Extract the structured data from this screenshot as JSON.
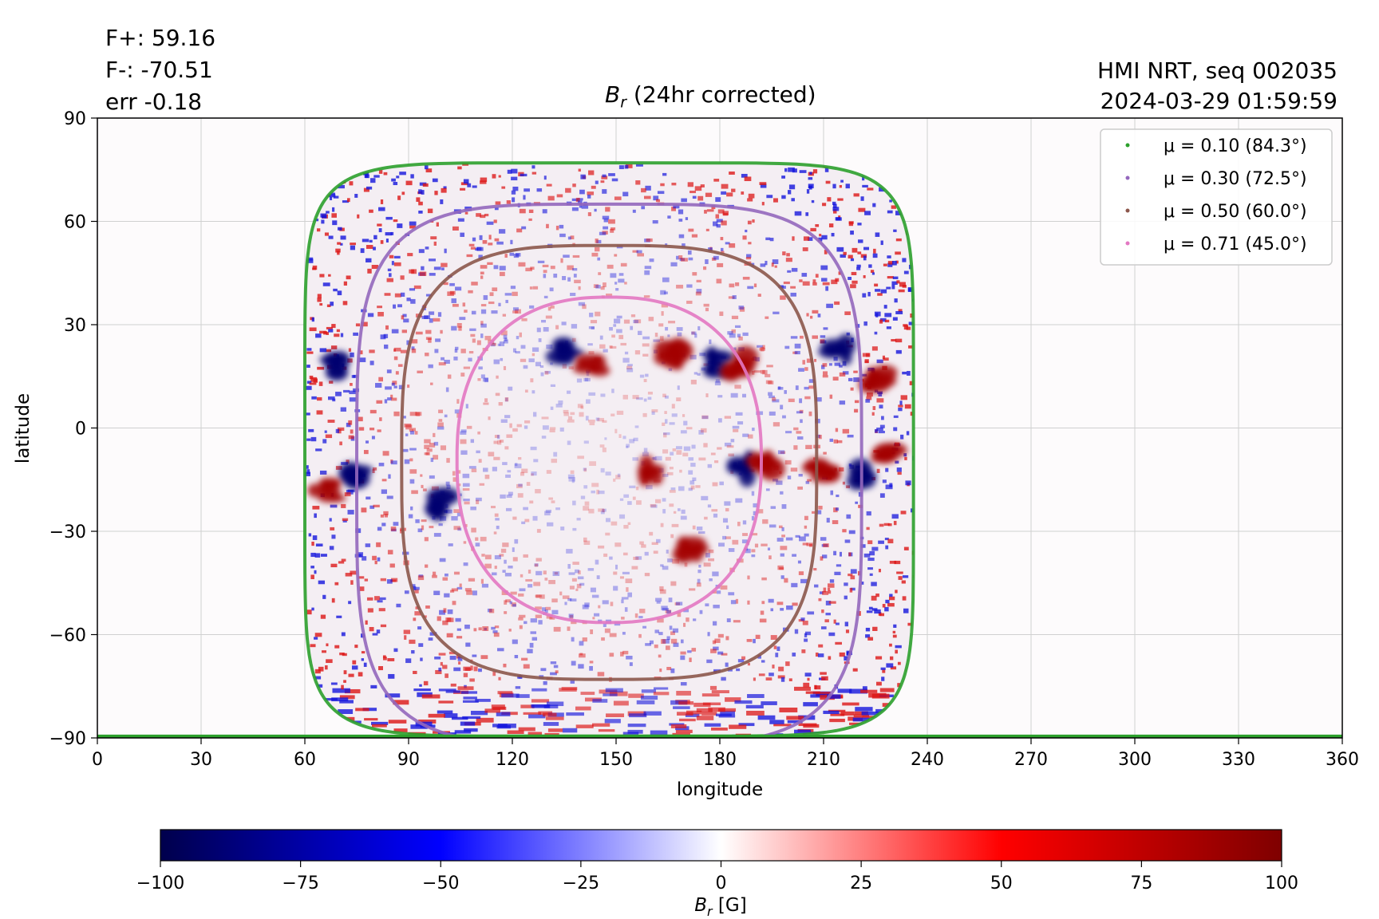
{
  "header": {
    "flux_plus": "F+: 59.16",
    "flux_minus": "F-: -70.51",
    "error": "err -0.18",
    "source": "HMI NRT, seq 002035",
    "timestamp": "2024-03-29 01:59:59"
  },
  "chart_data": {
    "type": "heatmap",
    "title": "B_r (24hr corrected)",
    "title_main": "B",
    "title_sub": "r",
    "title_rest": " (24hr corrected)",
    "xlabel": "longitude",
    "ylabel": "latitude",
    "xlim": [
      0,
      360
    ],
    "ylim": [
      -90,
      90
    ],
    "x_ticks": [
      0,
      30,
      60,
      90,
      120,
      150,
      180,
      210,
      240,
      270,
      300,
      330,
      360
    ],
    "y_ticks": [
      90,
      60,
      30,
      0,
      -30,
      -60,
      -90
    ],
    "x_tick_labels": [
      "0",
      "30",
      "60",
      "90",
      "120",
      "150",
      "180",
      "210",
      "240",
      "270",
      "300",
      "330",
      "360"
    ],
    "y_tick_labels": [
      "90",
      "60",
      "30",
      "0",
      "−30",
      "−60",
      "−90"
    ],
    "grid": true,
    "legend_position": "top-right",
    "disk_center": {
      "lon": 148,
      "lat": -7
    },
    "series": [
      {
        "name": "μ = 0.10 (84.3°)",
        "mu": 0.1,
        "color": "#2ca02c",
        "lon_half_width": 88,
        "top_lat": 77
      },
      {
        "name": "μ = 0.30 (72.5°)",
        "mu": 0.3,
        "color": "#9467bd",
        "lon_half_width": 73,
        "top_lat": 65
      },
      {
        "name": "μ = 0.50 (60.0°)",
        "mu": 0.5,
        "color": "#8c564b",
        "lon_half_width": 60,
        "top_lat": 53
      },
      {
        "name": "μ = 0.71 (45.0°)",
        "mu": 0.71,
        "color": "#e377c2",
        "lon_half_width": 44,
        "top_lat": 38
      }
    ],
    "active_regions": [
      {
        "lon": 135,
        "lat": 22,
        "polarity": "neg"
      },
      {
        "lon": 143,
        "lat": 19,
        "polarity": "pos"
      },
      {
        "lon": 166,
        "lat": 22,
        "polarity": "pos"
      },
      {
        "lon": 180,
        "lat": 19,
        "polarity": "neg"
      },
      {
        "lon": 185,
        "lat": 18,
        "polarity": "pos"
      },
      {
        "lon": 214,
        "lat": 22,
        "polarity": "neg"
      },
      {
        "lon": 226,
        "lat": 15,
        "polarity": "pos"
      },
      {
        "lon": 210,
        "lat": -12,
        "polarity": "pos"
      },
      {
        "lon": 220,
        "lat": -13,
        "polarity": "neg"
      },
      {
        "lon": 228,
        "lat": -8,
        "polarity": "pos"
      },
      {
        "lon": 161,
        "lat": -12,
        "polarity": "pos"
      },
      {
        "lon": 186,
        "lat": -12,
        "polarity": "neg"
      },
      {
        "lon": 193,
        "lat": -10,
        "polarity": "pos"
      },
      {
        "lon": 172,
        "lat": -35,
        "polarity": "pos"
      },
      {
        "lon": 74,
        "lat": -14,
        "polarity": "neg"
      },
      {
        "lon": 66,
        "lat": -18,
        "polarity": "pos"
      },
      {
        "lon": 100,
        "lat": -22,
        "polarity": "neg"
      },
      {
        "lon": 68,
        "lat": 18,
        "polarity": "neg"
      }
    ],
    "colorbar": {
      "min": -100,
      "max": 100,
      "ticks": [
        -100,
        -75,
        -50,
        -25,
        0,
        25,
        50,
        75,
        100
      ],
      "tick_labels": [
        "−100",
        "−75",
        "−50",
        "−25",
        "0",
        "25",
        "50",
        "75",
        "100"
      ],
      "label": "B_r [G]",
      "label_main": "B",
      "label_sub": "r",
      "label_rest": " [G]",
      "colors": [
        "#00004c",
        "#0000ff",
        "#ffffff",
        "#ff0000",
        "#7f0000"
      ]
    }
  }
}
